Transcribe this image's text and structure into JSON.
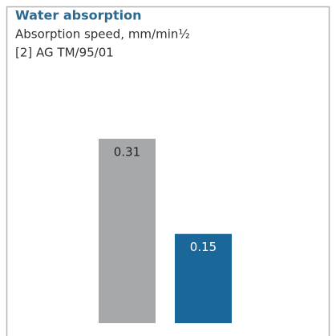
{
  "chart_data": {
    "type": "bar",
    "title": "Water absorption",
    "subtitle": "Absorption speed, mm/min½",
    "source": "[2] AG TM/95/01",
    "categories": [
      null,
      null
    ],
    "values": [
      0.31,
      0.15
    ],
    "colors": [
      "#a7a8ab",
      "#1a6899"
    ]
  }
}
